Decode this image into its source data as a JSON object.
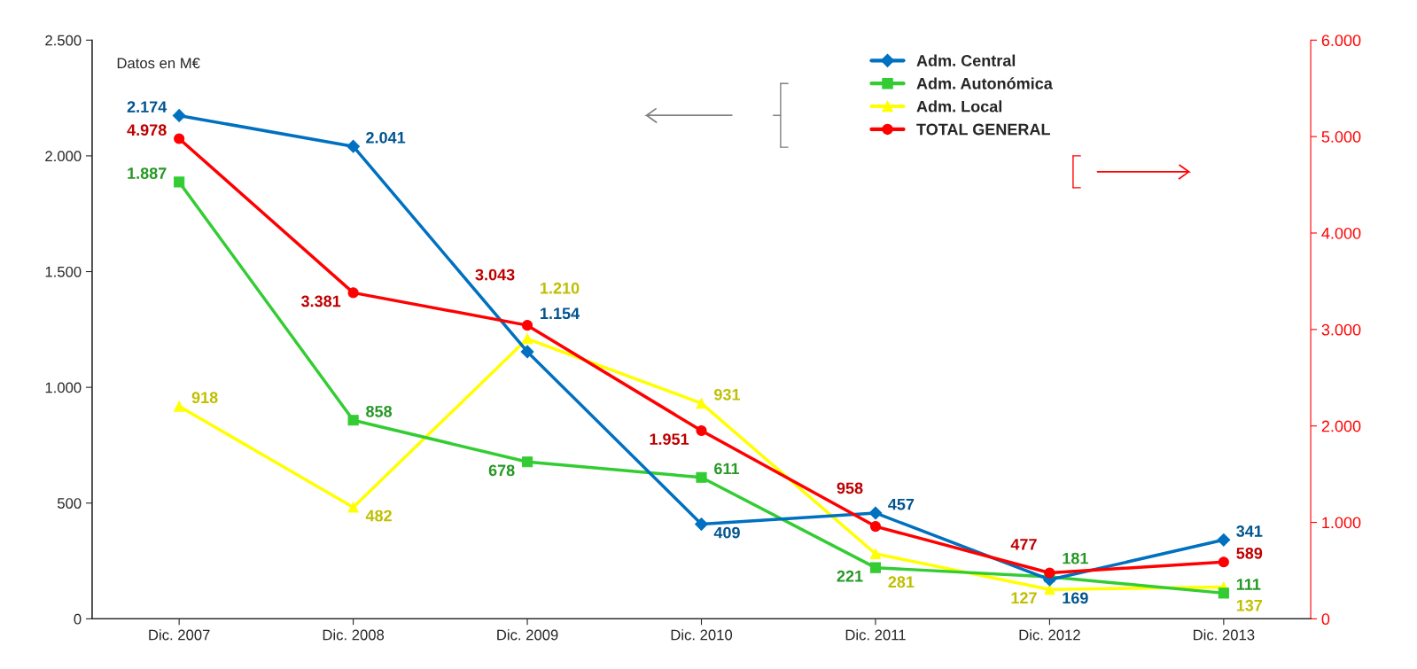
{
  "chart_data": {
    "type": "line",
    "categories": [
      "Dic. 2007",
      "Dic. 2008",
      "Dic. 2009",
      "Dic. 2010",
      "Dic. 2011",
      "Dic. 2012",
      "Dic. 2013"
    ],
    "series": [
      {
        "name": "Adm. Central",
        "color": "#0070c0",
        "marker": "diamond",
        "values": [
          2174,
          2041,
          1154,
          409,
          457,
          169,
          341
        ],
        "value_labels": [
          "2.174",
          "2.041",
          "1.154",
          "409",
          "457",
          "169",
          "341"
        ]
      },
      {
        "name": "Adm. Autonómica",
        "color": "#33cc33",
        "marker": "square",
        "values": [
          1887,
          858,
          678,
          611,
          221,
          181,
          111
        ],
        "value_labels": [
          "1.887",
          "858",
          "678",
          "611",
          "221",
          "181",
          "111"
        ]
      },
      {
        "name": "Adm. Local",
        "color": "#ffff00",
        "marker": "triangle",
        "values": [
          918,
          482,
          1210,
          931,
          281,
          127,
          137
        ],
        "value_labels": [
          "918",
          "482",
          "1.210",
          "931",
          "281",
          "127",
          "137"
        ]
      },
      {
        "name": "TOTAL GENERAL",
        "color": "#ff0000",
        "marker": "circle",
        "axis": "y2",
        "values": [
          4978,
          3381,
          3043,
          1951,
          958,
          477,
          589
        ],
        "value_labels": [
          "4.978",
          "3.381",
          "3.043",
          "1.951",
          "958",
          "477",
          "589"
        ]
      }
    ],
    "ylim": [
      0,
      2500
    ],
    "yticks": [
      0,
      {
        "value": 500,
        "label": "500"
      },
      {
        "value": 1000,
        "label": "1.000"
      },
      {
        "value": 1500,
        "label": "1.500"
      },
      {
        "value": 2000,
        "label": "2.000"
      },
      {
        "value": 2500,
        "label": "2.500"
      }
    ],
    "y2lim": [
      0,
      6000
    ],
    "y2ticks": [
      0,
      {
        "value": 1000,
        "label": "1.000"
      },
      {
        "value": 2000,
        "label": "2.000"
      },
      {
        "value": 3000,
        "label": "3.000"
      },
      {
        "value": 4000,
        "label": "4.000"
      },
      {
        "value": 5000,
        "label": "5.000"
      },
      {
        "value": 6000,
        "label": "6.000"
      }
    ],
    "annotations": [
      "Datos en M€"
    ],
    "legend": "top right",
    "grid": false
  }
}
